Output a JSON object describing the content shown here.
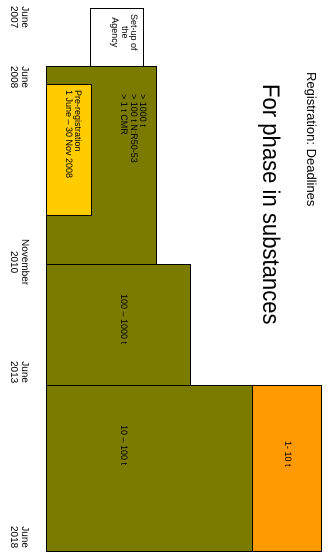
{
  "header": {
    "title": "Registration: Deadlines",
    "subtitle": "For phase in substances"
  },
  "timeline": {
    "dates": [
      "June\n2007",
      "June\n2008",
      "November\n2010",
      "June\n2013",
      "June\n2018"
    ]
  },
  "boxes": {
    "agency": "Set-up of\nthe\nAgency",
    "preregistration": "Pre-registration\n1 June – 30 Nov 2008",
    "tier1": "> 1000 t\n> 100 t N:R50-53\n> 1 t CMR",
    "tier2": "100 – 1000 t",
    "tier3": "10 – 100 t",
    "tier4": "1- 10 t"
  },
  "colors": {
    "olive": "#7b7b00",
    "yellow": "#ffcc00",
    "orange": "#ff9900",
    "white": "#ffffff"
  }
}
